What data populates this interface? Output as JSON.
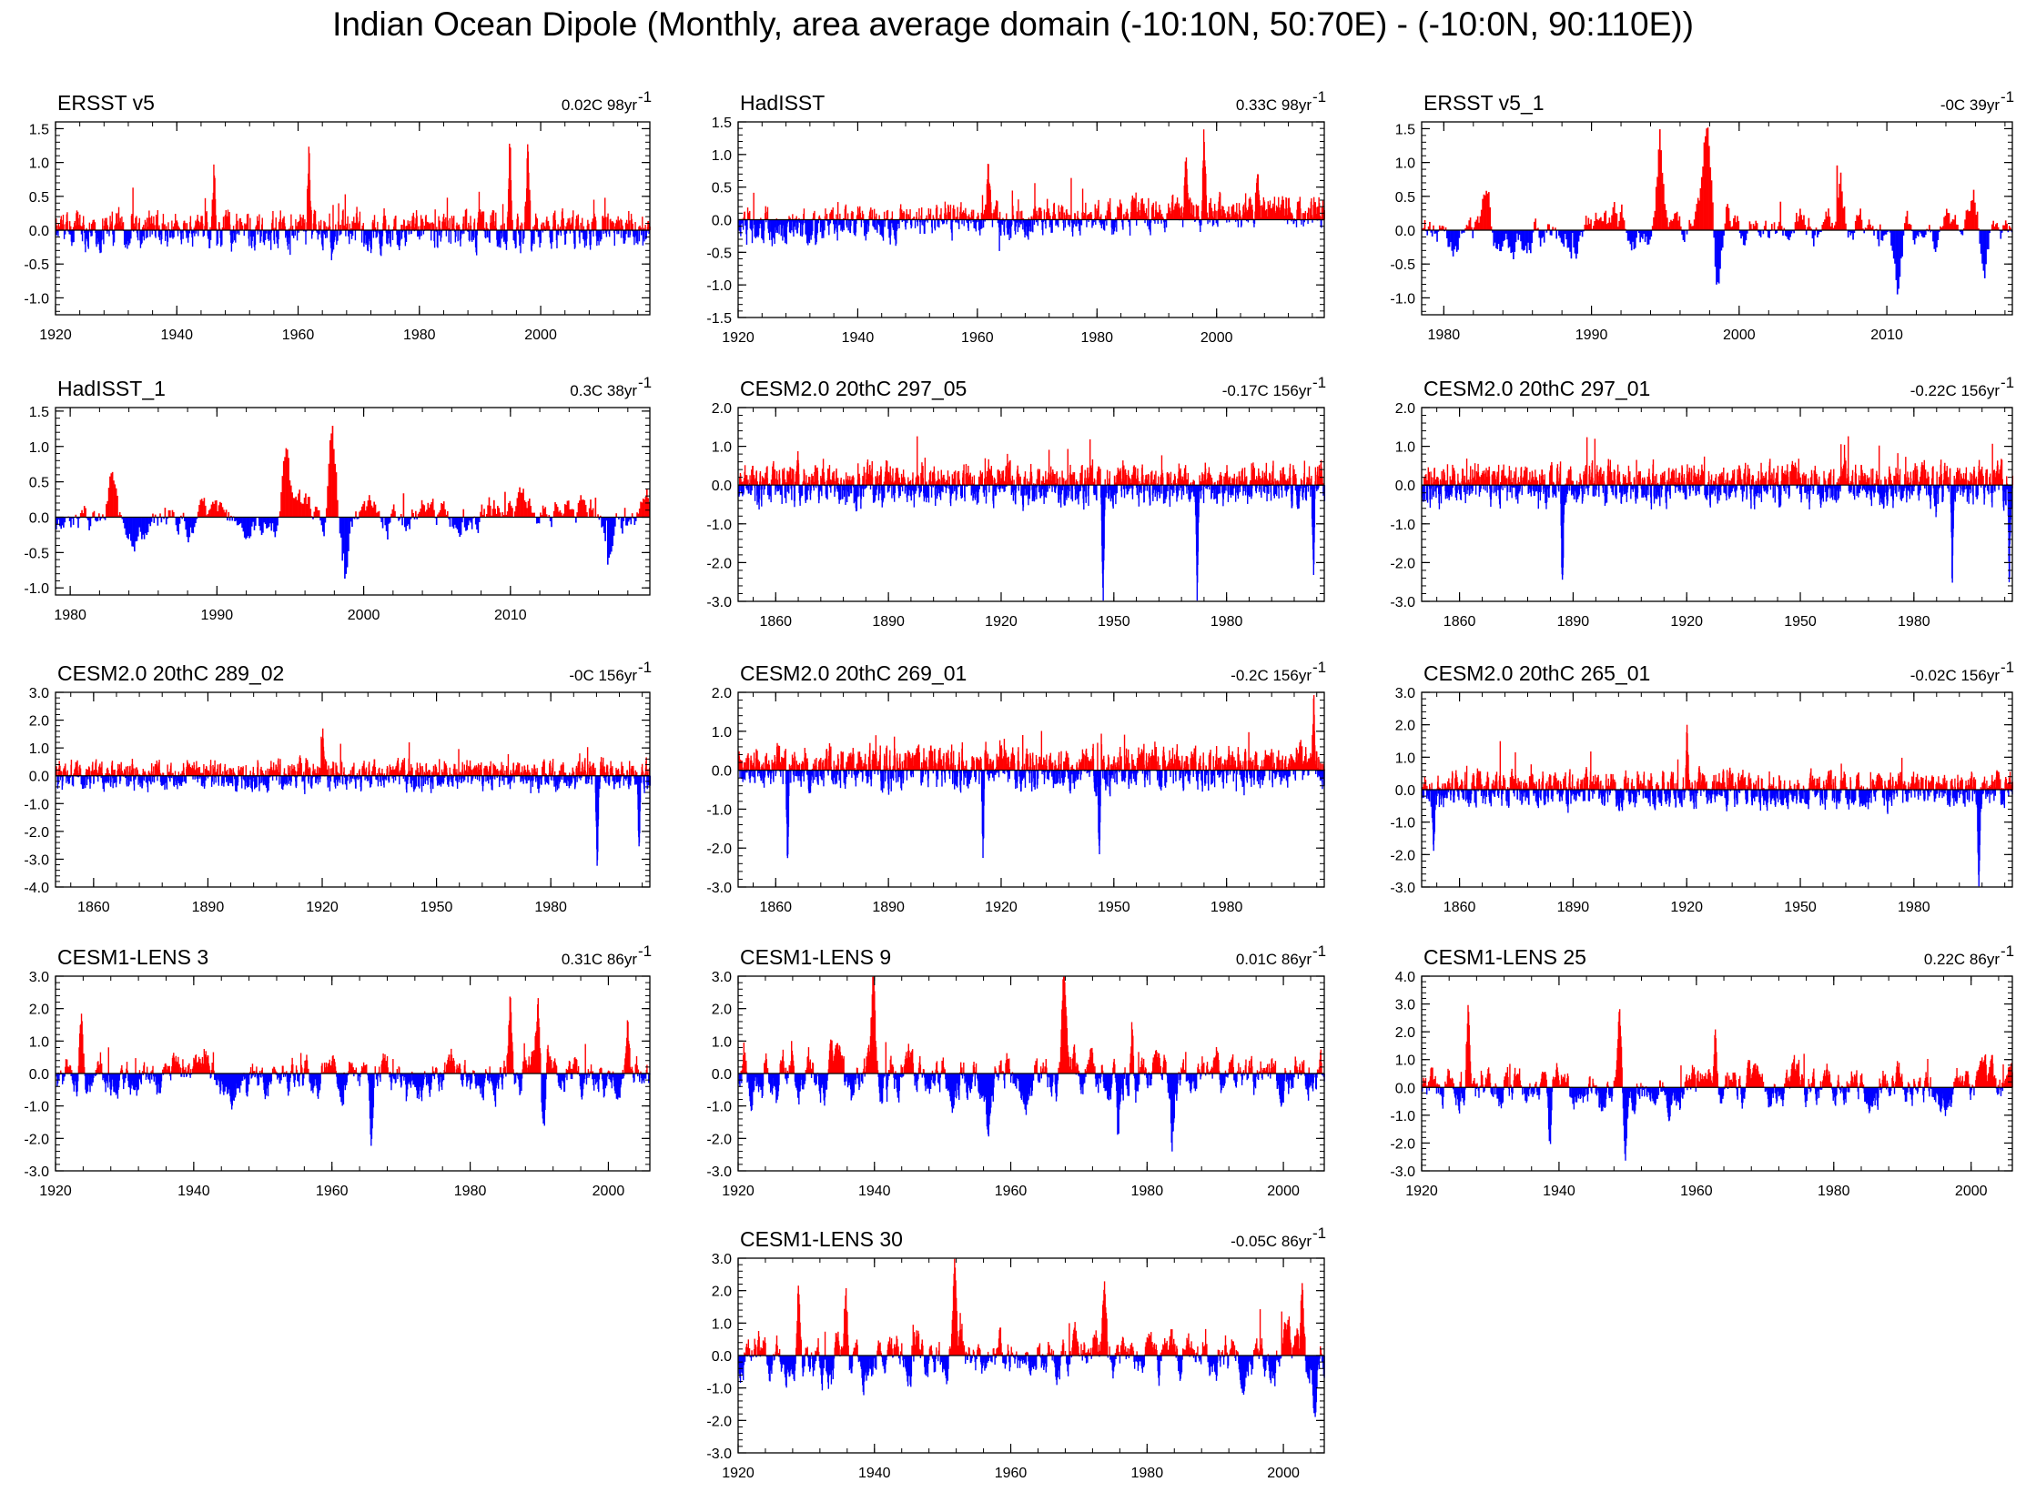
{
  "title": "Indian Ocean Dipole (Monthly, area average domain (-10:10N, 50:70E) - (-10:0N, 90:110E))",
  "colors": {
    "positive": "#ff0000",
    "negative": "#0000ff",
    "frame": "#000000"
  },
  "chart_data": [
    {
      "type": "area",
      "name": "ERSST v5",
      "trend": "0.02C 98yr",
      "trend_exp": "-1",
      "x_range": [
        1920,
        2018
      ],
      "ylim": [
        -1.25,
        1.6
      ],
      "y_ticks": [
        -1.0,
        -0.5,
        0.0,
        0.5,
        1.0,
        1.5
      ],
      "y_tick_labels": [
        "-1.0",
        "-0.5",
        "0.0",
        "0.5",
        "1.0",
        "1.5"
      ],
      "x_ticks": [
        1920,
        1940,
        1960,
        1980,
        2000
      ],
      "x_tick_labels": [
        "1920",
        "1940",
        "1960",
        "1980",
        "2000"
      ],
      "ref": 0.0,
      "events": [
        [
          1961.7,
          1.2
        ],
        [
          1994.8,
          1.3
        ],
        [
          1997.8,
          1.2
        ],
        [
          1946,
          0.9
        ]
      ],
      "seed": 11,
      "amp": 0.3,
      "baseline": 0
    },
    {
      "type": "area",
      "name": "HadISST",
      "trend": "0.33C 98yr",
      "trend_exp": "-1",
      "x_range": [
        1920,
        2018
      ],
      "ylim": [
        -1.5,
        1.5
      ],
      "y_ticks": [
        -1.5,
        -1.0,
        -0.5,
        0.0,
        0.5,
        1.0,
        1.5
      ],
      "y_tick_labels": [
        "-1.5",
        "-1.0",
        "-0.5",
        "0.0",
        "0.5",
        "1.0",
        "1.5"
      ],
      "x_ticks": [
        1920,
        1940,
        1960,
        1980,
        2000
      ],
      "x_tick_labels": [
        "1920",
        "1940",
        "1960",
        "1980",
        "2000"
      ],
      "ref": 0.0,
      "events": [
        [
          1961.7,
          0.8
        ],
        [
          1994.8,
          0.9
        ],
        [
          1997.8,
          1.2
        ],
        [
          2006.8,
          0.8
        ]
      ],
      "seed": 12,
      "amp": 0.28,
      "baseline": -0.15,
      "ramp": 0.3
    },
    {
      "type": "area",
      "name": "ERSST v5_1",
      "trend": "-0C 39yr",
      "trend_exp": "-1",
      "x_range": [
        1978.5,
        2018.5
      ],
      "ylim": [
        -1.25,
        1.6
      ],
      "y_ticks": [
        -1.0,
        -0.5,
        0.0,
        0.5,
        1.0,
        1.5
      ],
      "y_tick_labels": [
        "-1.0",
        "-0.5",
        "0.0",
        "0.5",
        "1.0",
        "1.5"
      ],
      "x_ticks": [
        1980,
        1990,
        2000,
        2010
      ],
      "x_tick_labels": [
        "1980",
        "1990",
        "2000",
        "2010"
      ],
      "ref": 0.0,
      "events": [
        [
          1994.6,
          1.4
        ],
        [
          1997.8,
          1.5
        ],
        [
          2006.8,
          0.8
        ],
        [
          1982.8,
          0.8
        ],
        [
          2015.8,
          0.7
        ],
        [
          1998.6,
          -0.8
        ],
        [
          2016.6,
          -1.0
        ],
        [
          2010.7,
          -0.9
        ]
      ],
      "seed": 13,
      "amp": 0.3,
      "baseline": 0,
      "smooth": true
    },
    {
      "type": "area",
      "name": "HadISST_1",
      "trend": "0.3C 38yr",
      "trend_exp": "-1",
      "x_range": [
        1979,
        2019.5
      ],
      "ylim": [
        -1.1,
        1.55
      ],
      "y_ticks": [
        -1.0,
        -0.5,
        0.0,
        0.5,
        1.0,
        1.5
      ],
      "y_tick_labels": [
        "-1.0",
        "-0.5",
        "0.0",
        "0.5",
        "1.0",
        "1.5"
      ],
      "x_ticks": [
        1980,
        1990,
        2000,
        2010
      ],
      "x_tick_labels": [
        "1980",
        "1990",
        "2000",
        "2010"
      ],
      "ref": 0.0,
      "events": [
        [
          1994.7,
          1.0
        ],
        [
          1997.8,
          1.35
        ],
        [
          1982.8,
          0.7
        ],
        [
          1998.6,
          -0.9
        ],
        [
          2016.6,
          -0.6
        ]
      ],
      "seed": 14,
      "amp": 0.25,
      "baseline": -0.15,
      "ramp": 0.3,
      "smooth": true
    },
    {
      "type": "area",
      "name": "CESM2.0 20thC 297_05",
      "trend": "-0.17C 156yr",
      "trend_exp": "-1",
      "x_range": [
        1850,
        2006
      ],
      "ylim": [
        -3.0,
        2.0
      ],
      "y_ticks": [
        -3.0,
        -2.0,
        -1.0,
        0.0,
        1.0,
        2.0
      ],
      "y_tick_labels": [
        "-3.0",
        "-2.0",
        "-1.0",
        "0.0",
        "1.0",
        "2.0"
      ],
      "x_ticks": [
        1860,
        1890,
        1920,
        1950,
        1980
      ],
      "x_tick_labels": [
        "1860",
        "1890",
        "1920",
        "1950",
        "1980"
      ],
      "ref": 0.0,
      "events": [
        [
          1947,
          -2.7
        ],
        [
          1972,
          -2.6
        ],
        [
          2003,
          -2.6
        ]
      ],
      "seed": 21,
      "amp": 0.55,
      "baseline": 0
    },
    {
      "type": "area",
      "name": "CESM2.0 20thC 297_01",
      "trend": "-0.22C 156yr",
      "trend_exp": "-1",
      "x_range": [
        1850,
        2006
      ],
      "ylim": [
        -3.0,
        2.0
      ],
      "y_ticks": [
        -3.0,
        -2.0,
        -1.0,
        0.0,
        1.0,
        2.0
      ],
      "y_tick_labels": [
        "-3.0",
        "-2.0",
        "-1.0",
        "0.0",
        "1.0",
        "2.0"
      ],
      "x_ticks": [
        1860,
        1890,
        1920,
        1950,
        1980
      ],
      "x_tick_labels": [
        "1860",
        "1890",
        "1920",
        "1950",
        "1980"
      ],
      "ref": 0.0,
      "events": [
        [
          1887,
          -2.6
        ],
        [
          1990,
          -2.7
        ],
        [
          2005,
          -2.3
        ]
      ],
      "seed": 22,
      "amp": 0.55,
      "baseline": 0
    },
    {
      "type": "area",
      "name": "CESM2.0 20thC 289_02",
      "trend": "-0C 156yr",
      "trend_exp": "-1",
      "x_range": [
        1850,
        2006
      ],
      "ylim": [
        -4.0,
        3.0
      ],
      "y_ticks": [
        -4.0,
        -3.0,
        -2.0,
        -1.0,
        0.0,
        1.0,
        2.0,
        3.0
      ],
      "y_tick_labels": [
        "-4.0",
        "-3.0",
        "-2.0",
        "-1.0",
        "0.0",
        "1.0",
        "2.0",
        "3.0"
      ],
      "x_ticks": [
        1860,
        1890,
        1920,
        1950,
        1980
      ],
      "x_tick_labels": [
        "1860",
        "1890",
        "1920",
        "1950",
        "1980"
      ],
      "ref": 0.0,
      "events": [
        [
          1992,
          -3.3
        ],
        [
          2003,
          -2.5
        ],
        [
          1920,
          1.9
        ]
      ],
      "seed": 23,
      "amp": 0.55,
      "baseline": 0
    },
    {
      "type": "area",
      "name": "CESM2.0 20thC 269_01",
      "trend": "-0.2C 156yr",
      "trend_exp": "-1",
      "x_range": [
        1850,
        2006
      ],
      "ylim": [
        -3.0,
        2.0
      ],
      "y_ticks": [
        -3.0,
        -2.0,
        -1.0,
        0.0,
        1.0,
        2.0
      ],
      "y_tick_labels": [
        "-3.0",
        "-2.0",
        "-1.0",
        "0.0",
        "1.0",
        "2.0"
      ],
      "x_ticks": [
        1860,
        1890,
        1920,
        1950,
        1980
      ],
      "x_tick_labels": [
        "1860",
        "1890",
        "1920",
        "1950",
        "1980"
      ],
      "ref": 0.0,
      "events": [
        [
          1863,
          -2.4
        ],
        [
          1946,
          -2.5
        ],
        [
          1915,
          -2.3
        ],
        [
          2003,
          1.9
        ]
      ],
      "seed": 24,
      "amp": 0.55,
      "baseline": 0.05
    },
    {
      "type": "area",
      "name": "CESM2.0 20thC 265_01",
      "trend": "-0.02C 156yr",
      "trend_exp": "-1",
      "x_range": [
        1850,
        2006
      ],
      "ylim": [
        -3.0,
        3.0
      ],
      "y_ticks": [
        -3.0,
        -2.0,
        -1.0,
        0.0,
        1.0,
        2.0,
        3.0
      ],
      "y_tick_labels": [
        "-3.0",
        "-2.0",
        "-1.0",
        "0.0",
        "1.0",
        "2.0",
        "3.0"
      ],
      "x_ticks": [
        1860,
        1890,
        1920,
        1950,
        1980
      ],
      "x_tick_labels": [
        "1860",
        "1890",
        "1920",
        "1950",
        "1980"
      ],
      "ref": 0.0,
      "events": [
        [
          1853,
          -2.4
        ],
        [
          1997,
          -2.8
        ],
        [
          1920,
          1.9
        ]
      ],
      "seed": 25,
      "amp": 0.55,
      "baseline": 0
    },
    {
      "type": "area",
      "name": "CESM1-LENS 3",
      "trend": "0.31C 86yr",
      "trend_exp": "-1",
      "x_range": [
        1920,
        2006
      ],
      "ylim": [
        -3.0,
        3.0
      ],
      "y_ticks": [
        -3.0,
        -2.0,
        -1.0,
        0.0,
        1.0,
        2.0,
        3.0
      ],
      "y_tick_labels": [
        "-3.0",
        "-2.0",
        "-1.0",
        "0.0",
        "1.0",
        "2.0",
        "3.0"
      ],
      "x_ticks": [
        1920,
        1940,
        1960,
        1980,
        2000
      ],
      "x_tick_labels": [
        "1920",
        "1940",
        "1960",
        "1980",
        "2000"
      ],
      "ref": 0.0,
      "events": [
        [
          1985.7,
          2.6
        ],
        [
          1989.7,
          2.4
        ],
        [
          1923.7,
          2.1
        ],
        [
          2002.7,
          2.2
        ],
        [
          1990.6,
          -2.3
        ],
        [
          1965.6,
          -2.0
        ]
      ],
      "seed": 31,
      "amp": 0.6,
      "baseline": -0.1,
      "smooth": true
    },
    {
      "type": "area",
      "name": "CESM1-LENS 9",
      "trend": "0.01C 86yr",
      "trend_exp": "-1",
      "x_range": [
        1920,
        2006
      ],
      "ylim": [
        -3.0,
        3.0
      ],
      "y_ticks": [
        -3.0,
        -2.0,
        -1.0,
        0.0,
        1.0,
        2.0,
        3.0
      ],
      "y_tick_labels": [
        "-3.0",
        "-2.0",
        "-1.0",
        "0.0",
        "1.0",
        "2.0",
        "3.0"
      ],
      "x_ticks": [
        1920,
        1940,
        1960,
        1980,
        2000
      ],
      "x_tick_labels": [
        "1920",
        "1940",
        "1960",
        "1980",
        "2000"
      ],
      "ref": 0.0,
      "events": [
        [
          1939.7,
          2.7
        ],
        [
          1967.7,
          2.6
        ],
        [
          1977.7,
          2.2
        ],
        [
          1956.6,
          -2.2
        ],
        [
          1975.6,
          -2.2
        ],
        [
          1983.6,
          -2.2
        ]
      ],
      "seed": 32,
      "amp": 0.7,
      "baseline": 0,
      "smooth": true
    },
    {
      "type": "area",
      "name": "CESM1-LENS 25",
      "trend": "0.22C 86yr",
      "trend_exp": "-1",
      "x_range": [
        1920,
        2006
      ],
      "ylim": [
        -3.0,
        4.0
      ],
      "y_ticks": [
        -3.0,
        -2.0,
        -1.0,
        0.0,
        1.0,
        2.0,
        3.0,
        4.0
      ],
      "y_tick_labels": [
        "-3.0",
        "-2.0",
        "-1.0",
        "0.0",
        "1.0",
        "2.0",
        "3.0",
        "4.0"
      ],
      "x_ticks": [
        1920,
        1940,
        1960,
        1980,
        2000
      ],
      "x_tick_labels": [
        "1920",
        "1940",
        "1960",
        "1980",
        "2000"
      ],
      "ref": 0.0,
      "events": [
        [
          1926.7,
          2.8
        ],
        [
          1948.7,
          2.7
        ],
        [
          1962.7,
          2.9
        ],
        [
          1949.6,
          -2.3
        ],
        [
          1938.6,
          -2.3
        ]
      ],
      "seed": 33,
      "amp": 0.7,
      "baseline": 0,
      "smooth": true
    },
    {
      "type": "area",
      "name": "CESM1-LENS 30",
      "trend": "-0.05C 86yr",
      "trend_exp": "-1",
      "x_range": [
        1920,
        2006
      ],
      "ylim": [
        -3.0,
        3.0
      ],
      "y_ticks": [
        -3.0,
        -2.0,
        -1.0,
        0.0,
        1.0,
        2.0,
        3.0
      ],
      "y_tick_labels": [
        "-3.0",
        "-2.0",
        "-1.0",
        "0.0",
        "1.0",
        "2.0",
        "3.0"
      ],
      "x_ticks": [
        1920,
        1940,
        1960,
        1980,
        2000
      ],
      "x_tick_labels": [
        "1920",
        "1940",
        "1960",
        "1980",
        "2000"
      ],
      "ref": 0.0,
      "events": [
        [
          1951.7,
          2.8
        ],
        [
          1973.7,
          2.6
        ],
        [
          1935.7,
          2.5
        ],
        [
          1928.7,
          2.4
        ],
        [
          2002.7,
          2.3
        ],
        [
          2004.6,
          -2.1
        ]
      ],
      "seed": 34,
      "amp": 0.7,
      "baseline": 0,
      "smooth": true
    }
  ]
}
